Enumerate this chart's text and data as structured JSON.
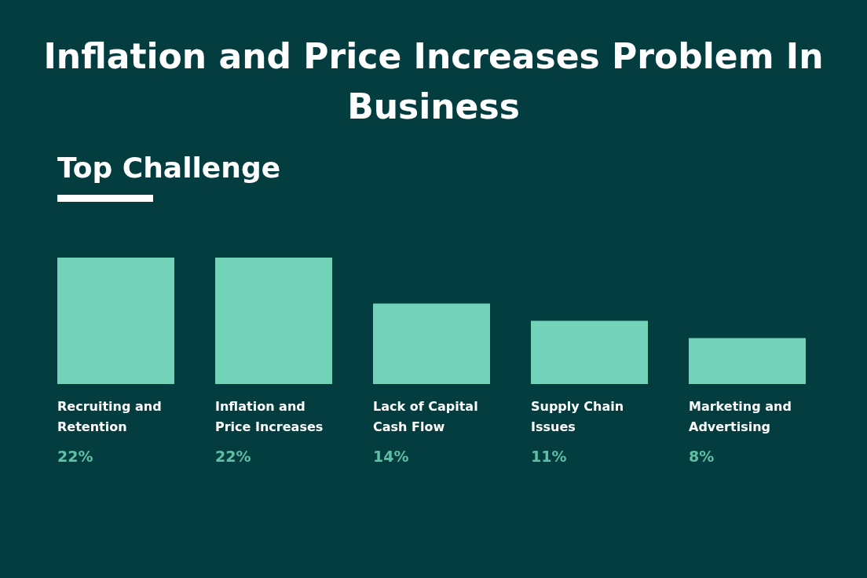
{
  "chart_data": {
    "type": "bar",
    "title": "Inflation and Price Increases Problem In Business",
    "subtitle": "Top Challenge",
    "categories": [
      "Recruiting and Retention",
      "Inflation and Price Increases",
      "Lack of Capital Cash Flow",
      "Supply Chain Issues",
      "Marketing and Advertising"
    ],
    "values": [
      22,
      22,
      14,
      11,
      8
    ],
    "value_labels": [
      "22%",
      "22%",
      "14%",
      "11%",
      "8%"
    ],
    "color": "#72d3b9"
  }
}
